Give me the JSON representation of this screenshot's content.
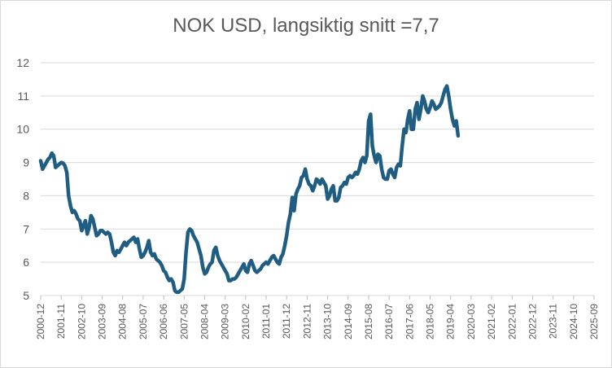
{
  "chart_data": {
    "type": "line",
    "title": "NOK USD, langsiktig snitt =7,7",
    "xlabel": "",
    "ylabel": "",
    "ylim": [
      5,
      12
    ],
    "yticks": [
      5,
      6,
      7,
      8,
      9,
      10,
      11,
      12
    ],
    "grid": "horizontal",
    "legend": "none",
    "line_color": "#1f5e82",
    "x_tick_labels": [
      "2000-12",
      "2001-11",
      "2002-10",
      "2003-09",
      "2004-08",
      "2005-07",
      "2006-06",
      "2007-05",
      "2008-04",
      "2009-03",
      "2010-02",
      "2011-01",
      "2011-12",
      "2012-11",
      "2013-10",
      "2014-09",
      "2015-08",
      "2016-07",
      "2017-06",
      "2018-05",
      "2019-04",
      "2020-03",
      "2021-02",
      "2022-01",
      "2022-12",
      "2023-11",
      "2024-10",
      "2025-09"
    ],
    "series": [
      {
        "points": [
          [
            "2000-12",
            9.05
          ],
          [
            "2001-01",
            8.8
          ],
          [
            "2001-02",
            8.9
          ],
          [
            "2001-03",
            9.0
          ],
          [
            "2001-04",
            9.1
          ],
          [
            "2001-05",
            9.15
          ],
          [
            "2001-06",
            9.28
          ],
          [
            "2001-07",
            9.2
          ],
          [
            "2001-08",
            8.85
          ],
          [
            "2001-09",
            8.9
          ],
          [
            "2001-10",
            8.95
          ],
          [
            "2001-11",
            9.0
          ],
          [
            "2001-12",
            8.98
          ],
          [
            "2002-01",
            8.9
          ],
          [
            "2002-02",
            8.7
          ],
          [
            "2002-03",
            8.0
          ],
          [
            "2002-04",
            7.7
          ],
          [
            "2002-05",
            7.5
          ],
          [
            "2002-06",
            7.55
          ],
          [
            "2002-07",
            7.45
          ],
          [
            "2002-08",
            7.3
          ],
          [
            "2002-09",
            7.25
          ],
          [
            "2002-10",
            6.95
          ],
          [
            "2002-11",
            7.1
          ],
          [
            "2002-12",
            7.25
          ],
          [
            "2003-01",
            6.85
          ],
          [
            "2003-02",
            7.05
          ],
          [
            "2003-03",
            7.4
          ],
          [
            "2003-04",
            7.3
          ],
          [
            "2003-05",
            7.05
          ],
          [
            "2003-06",
            6.8
          ],
          [
            "2003-07",
            6.85
          ],
          [
            "2003-08",
            6.95
          ],
          [
            "2003-09",
            6.95
          ],
          [
            "2003-10",
            6.9
          ],
          [
            "2003-11",
            6.85
          ],
          [
            "2003-12",
            6.9
          ],
          [
            "2004-01",
            6.85
          ],
          [
            "2004-02",
            6.6
          ],
          [
            "2004-03",
            6.3
          ],
          [
            "2004-04",
            6.2
          ],
          [
            "2004-05",
            6.35
          ],
          [
            "2004-06",
            6.3
          ],
          [
            "2004-07",
            6.4
          ],
          [
            "2004-08",
            6.5
          ],
          [
            "2004-09",
            6.6
          ],
          [
            "2004-10",
            6.5
          ],
          [
            "2004-11",
            6.6
          ],
          [
            "2004-12",
            6.65
          ],
          [
            "2005-01",
            6.7
          ],
          [
            "2005-02",
            6.75
          ],
          [
            "2005-03",
            6.6
          ],
          [
            "2005-04",
            6.7
          ],
          [
            "2005-05",
            6.4
          ],
          [
            "2005-06",
            6.15
          ],
          [
            "2005-07",
            6.2
          ],
          [
            "2005-08",
            6.3
          ],
          [
            "2005-09",
            6.45
          ],
          [
            "2005-10",
            6.65
          ],
          [
            "2005-11",
            6.3
          ],
          [
            "2005-12",
            6.2
          ],
          [
            "2006-01",
            6.25
          ],
          [
            "2006-02",
            6.1
          ],
          [
            "2006-03",
            6.05
          ],
          [
            "2006-04",
            6.0
          ],
          [
            "2006-05",
            5.9
          ],
          [
            "2006-06",
            5.75
          ],
          [
            "2006-07",
            5.7
          ],
          [
            "2006-08",
            5.55
          ],
          [
            "2006-09",
            5.45
          ],
          [
            "2006-10",
            5.5
          ],
          [
            "2006-11",
            5.4
          ],
          [
            "2006-12",
            5.15
          ],
          [
            "2007-01",
            5.1
          ],
          [
            "2007-02",
            5.1
          ],
          [
            "2007-03",
            5.15
          ],
          [
            "2007-04",
            5.2
          ],
          [
            "2007-05",
            5.5
          ],
          [
            "2007-06",
            6.3
          ],
          [
            "2007-07",
            6.9
          ],
          [
            "2007-08",
            7.0
          ],
          [
            "2007-09",
            6.95
          ],
          [
            "2007-10",
            6.8
          ],
          [
            "2007-11",
            6.7
          ],
          [
            "2007-12",
            6.6
          ],
          [
            "2008-01",
            6.4
          ],
          [
            "2008-02",
            6.2
          ],
          [
            "2008-03",
            5.85
          ],
          [
            "2008-04",
            5.65
          ],
          [
            "2008-05",
            5.7
          ],
          [
            "2008-06",
            5.85
          ],
          [
            "2008-07",
            5.95
          ],
          [
            "2008-08",
            6.0
          ],
          [
            "2008-09",
            6.35
          ],
          [
            "2008-10",
            6.45
          ],
          [
            "2008-11",
            6.2
          ],
          [
            "2008-12",
            6.05
          ],
          [
            "2009-01",
            5.95
          ],
          [
            "2009-02",
            5.85
          ],
          [
            "2009-03",
            5.75
          ],
          [
            "2009-04",
            5.65
          ],
          [
            "2009-05",
            5.45
          ],
          [
            "2009-06",
            5.45
          ],
          [
            "2009-07",
            5.5
          ],
          [
            "2009-08",
            5.5
          ],
          [
            "2009-09",
            5.55
          ],
          [
            "2009-10",
            5.65
          ],
          [
            "2009-11",
            5.75
          ],
          [
            "2009-12",
            5.85
          ],
          [
            "2010-01",
            5.95
          ],
          [
            "2010-02",
            5.75
          ],
          [
            "2010-03",
            5.7
          ],
          [
            "2010-04",
            5.95
          ],
          [
            "2010-05",
            6.05
          ],
          [
            "2010-06",
            5.9
          ],
          [
            "2010-07",
            5.75
          ],
          [
            "2010-08",
            5.7
          ],
          [
            "2010-09",
            5.75
          ],
          [
            "2010-10",
            5.8
          ],
          [
            "2010-11",
            5.9
          ],
          [
            "2010-12",
            5.95
          ],
          [
            "2011-01",
            6.0
          ],
          [
            "2011-02",
            5.95
          ],
          [
            "2011-03",
            6.05
          ],
          [
            "2011-04",
            6.15
          ],
          [
            "2011-05",
            6.2
          ],
          [
            "2011-06",
            6.1
          ],
          [
            "2011-07",
            6.0
          ],
          [
            "2011-08",
            5.95
          ],
          [
            "2011-09",
            6.15
          ],
          [
            "2011-10",
            6.25
          ],
          [
            "2011-11",
            6.5
          ],
          [
            "2011-12",
            6.8
          ],
          [
            "2012-01",
            7.2
          ],
          [
            "2012-02",
            7.45
          ],
          [
            "2012-03",
            7.95
          ],
          [
            "2012-04",
            7.55
          ],
          [
            "2012-05",
            8.05
          ],
          [
            "2012-06",
            8.2
          ],
          [
            "2012-07",
            8.3
          ],
          [
            "2012-08",
            8.55
          ],
          [
            "2012-09",
            8.6
          ],
          [
            "2012-10",
            8.8
          ],
          [
            "2012-11",
            8.5
          ],
          [
            "2012-12",
            8.35
          ],
          [
            "2013-01",
            8.3
          ],
          [
            "2013-02",
            8.15
          ],
          [
            "2013-03",
            8.3
          ],
          [
            "2013-04",
            8.5
          ],
          [
            "2013-05",
            8.45
          ],
          [
            "2013-06",
            8.35
          ],
          [
            "2013-07",
            8.5
          ],
          [
            "2013-08",
            8.4
          ],
          [
            "2013-09",
            8.3
          ],
          [
            "2013-10",
            7.9
          ],
          [
            "2013-11",
            8.0
          ],
          [
            "2013-12",
            8.2
          ],
          [
            "2014-01",
            8.3
          ],
          [
            "2014-02",
            7.85
          ],
          [
            "2014-03",
            7.85
          ],
          [
            "2014-04",
            7.95
          ],
          [
            "2014-05",
            8.25
          ],
          [
            "2014-06",
            8.3
          ],
          [
            "2014-07",
            8.4
          ],
          [
            "2014-08",
            8.35
          ],
          [
            "2014-09",
            8.55
          ],
          [
            "2014-10",
            8.6
          ],
          [
            "2014-11",
            8.55
          ],
          [
            "2014-12",
            8.6
          ],
          [
            "2015-01",
            8.7
          ],
          [
            "2015-02",
            8.65
          ],
          [
            "2015-03",
            8.8
          ],
          [
            "2015-04",
            9.05
          ],
          [
            "2015-05",
            9.15
          ],
          [
            "2015-06",
            9.0
          ],
          [
            "2015-07",
            9.2
          ],
          [
            "2015-08",
            10.25
          ],
          [
            "2015-09",
            10.45
          ],
          [
            "2015-10",
            9.5
          ],
          [
            "2015-11",
            9.2
          ],
          [
            "2015-12",
            9.0
          ],
          [
            "2016-01",
            9.25
          ],
          [
            "2016-02",
            9.2
          ],
          [
            "2016-03",
            8.8
          ],
          [
            "2016-04",
            8.55
          ],
          [
            "2016-05",
            8.5
          ],
          [
            "2016-06",
            8.5
          ],
          [
            "2016-07",
            8.75
          ],
          [
            "2016-08",
            8.8
          ],
          [
            "2016-09",
            8.65
          ],
          [
            "2016-10",
            8.55
          ],
          [
            "2016-11",
            8.85
          ],
          [
            "2016-12",
            8.95
          ],
          [
            "2017-01",
            8.9
          ],
          [
            "2017-02",
            9.5
          ],
          [
            "2017-03",
            10.0
          ],
          [
            "2017-04",
            9.9
          ],
          [
            "2017-05",
            10.3
          ],
          [
            "2017-06",
            10.55
          ],
          [
            "2017-07",
            10.0
          ],
          [
            "2017-08",
            10.0
          ],
          [
            "2017-09",
            10.6
          ],
          [
            "2017-10",
            10.8
          ],
          [
            "2017-11",
            10.3
          ],
          [
            "2017-12",
            10.6
          ],
          [
            "2018-01",
            11.0
          ],
          [
            "2018-02",
            10.85
          ],
          [
            "2018-03",
            10.6
          ],
          [
            "2018-04",
            10.5
          ],
          [
            "2018-05",
            10.65
          ],
          [
            "2018-06",
            10.85
          ],
          [
            "2018-07",
            10.75
          ],
          [
            "2018-08",
            10.6
          ],
          [
            "2018-09",
            10.65
          ],
          [
            "2018-10",
            10.7
          ],
          [
            "2018-11",
            10.8
          ],
          [
            "2018-12",
            11.0
          ],
          [
            "2019-01",
            11.2
          ],
          [
            "2019-02",
            11.3
          ],
          [
            "2019-03",
            11.0
          ],
          [
            "2019-04",
            10.6
          ],
          [
            "2019-05",
            10.3
          ],
          [
            "2019-06",
            10.1
          ],
          [
            "2019-07",
            10.25
          ],
          [
            "2019-08",
            9.8
          ]
        ]
      }
    ]
  }
}
